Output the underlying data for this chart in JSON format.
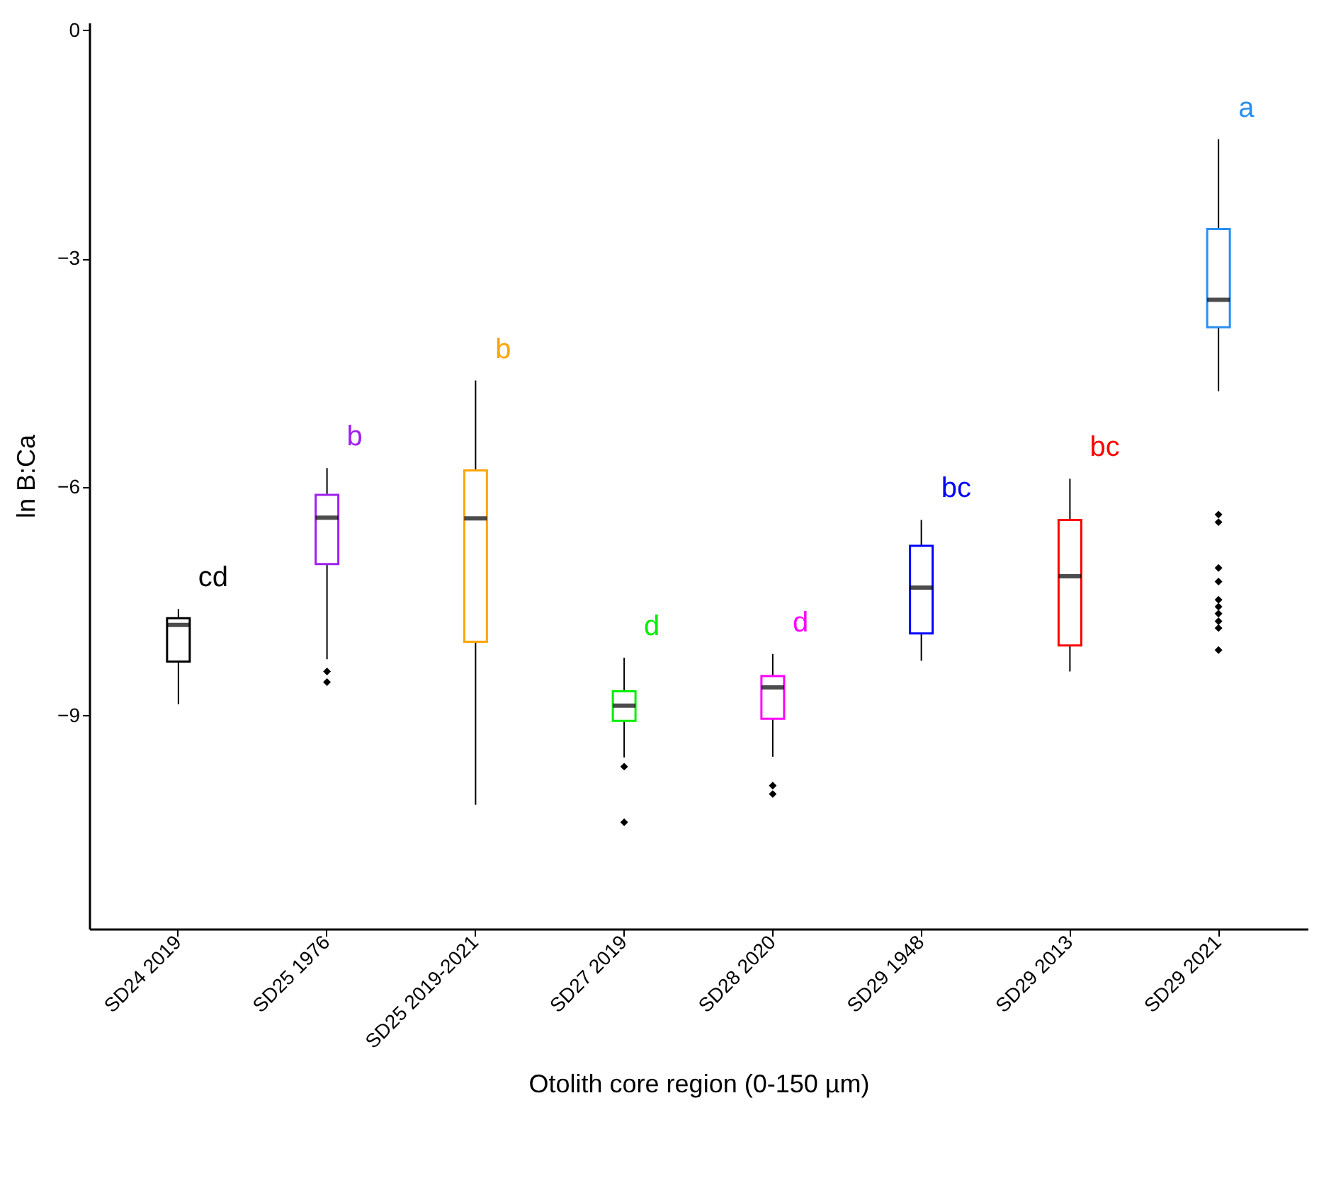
{
  "chart_data": {
    "type": "box",
    "xlabel": "Otolith core region (0-150 µm)",
    "ylabel": "ln B:Ca",
    "categories": [
      "SD24 2019",
      "SD25 1976",
      "SD25 2019-2021",
      "SD27 2019",
      "SD28 2020",
      "SD29 1948",
      "SD29 2013",
      "SD29 2021"
    ],
    "colors": [
      "#000000",
      "#a020f0",
      "#ffa500",
      "#00ee00",
      "#ff00ff",
      "#0000ff",
      "#ff0000",
      "#2b8ff0"
    ],
    "boxes": [
      {
        "low": -8.85,
        "q1": -8.29,
        "median": -7.81,
        "q3": -7.72,
        "high": -7.6
      },
      {
        "low": -8.26,
        "q1": -7.01,
        "median": -6.4,
        "q3": -6.1,
        "high": -5.75,
        "outliers": [
          -8.42,
          -8.56
        ]
      },
      {
        "low": -10.17,
        "q1": -8.03,
        "median": -6.41,
        "q3": -5.78,
        "high": -4.6
      },
      {
        "low": -9.55,
        "q1": -9.07,
        "median": -8.87,
        "q3": -8.68,
        "high": -8.24,
        "outliers": [
          -9.67,
          -10.4
        ]
      },
      {
        "low": -9.54,
        "q1": -9.04,
        "median": -8.63,
        "q3": -8.48,
        "high": -8.19,
        "outliers": [
          -9.92,
          -10.03
        ]
      },
      {
        "low": -8.28,
        "q1": -7.92,
        "median": -7.32,
        "q3": -6.77,
        "high": -6.43
      },
      {
        "low": -8.42,
        "q1": -8.08,
        "median": -7.17,
        "q3": -6.43,
        "high": -5.89
      },
      {
        "low": -4.74,
        "q1": -3.9,
        "median": -3.54,
        "q3": -2.61,
        "high": -1.43,
        "outliers": [
          -6.36,
          -6.46,
          -7.06,
          -7.24,
          -7.48,
          -7.57,
          -7.66,
          -7.76,
          -7.85,
          -8.14
        ]
      }
    ],
    "ylim": [
      -11.8,
      0.1
    ],
    "yticks": [
      0,
      -3,
      -6,
      -9
    ],
    "grid": false,
    "annotations": [
      "cd",
      "b",
      "b",
      "d",
      "d",
      "bc",
      "bc",
      "a"
    ]
  }
}
